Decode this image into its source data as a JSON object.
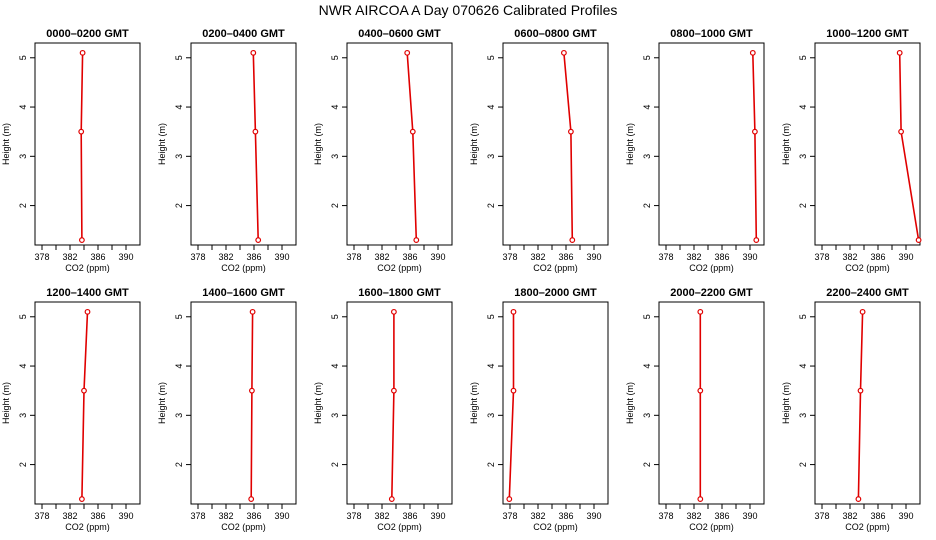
{
  "figure": {
    "title": "NWR AIRCOA A  Day 070626  Calibrated Profiles"
  },
  "chart_data": [
    {
      "type": "line",
      "title": "0000–0200 GMT",
      "xlabel": "CO2 (ppm)",
      "ylabel": "Height (m)",
      "xlim": [
        377,
        392
      ],
      "ylim": [
        1.2,
        5.3
      ],
      "xticks": [
        378,
        382,
        386,
        390
      ],
      "yticks": [
        2,
        3,
        4,
        5
      ],
      "series": [
        {
          "x": [
            383.8,
            383.6,
            383.7
          ],
          "y": [
            5.1,
            3.5,
            1.3
          ]
        }
      ]
    },
    {
      "type": "line",
      "title": "0200–0400 GMT",
      "xlabel": "CO2 (ppm)",
      "ylabel": "Height (m)",
      "xlim": [
        377,
        392
      ],
      "ylim": [
        1.2,
        5.3
      ],
      "xticks": [
        378,
        382,
        386,
        390
      ],
      "yticks": [
        2,
        3,
        4,
        5
      ],
      "series": [
        {
          "x": [
            385.9,
            386.2,
            386.6
          ],
          "y": [
            5.1,
            3.5,
            1.3
          ]
        }
      ]
    },
    {
      "type": "line",
      "title": "0400–0600 GMT",
      "xlabel": "CO2 (ppm)",
      "ylabel": "Height (m)",
      "xlim": [
        377,
        392
      ],
      "ylim": [
        1.2,
        5.3
      ],
      "xticks": [
        378,
        382,
        386,
        390
      ],
      "yticks": [
        2,
        3,
        4,
        5
      ],
      "series": [
        {
          "x": [
            385.6,
            386.4,
            386.9
          ],
          "y": [
            5.1,
            3.5,
            1.3
          ]
        }
      ]
    },
    {
      "type": "line",
      "title": "0600–0800 GMT",
      "xlabel": "CO2 (ppm)",
      "ylabel": "Height (m)",
      "xlim": [
        377,
        392
      ],
      "ylim": [
        1.2,
        5.3
      ],
      "xticks": [
        378,
        382,
        386,
        390
      ],
      "yticks": [
        2,
        3,
        4,
        5
      ],
      "series": [
        {
          "x": [
            385.7,
            386.7,
            386.9
          ],
          "y": [
            5.1,
            3.5,
            1.3
          ]
        }
      ]
    },
    {
      "type": "line",
      "title": "0800–1000 GMT",
      "xlabel": "CO2 (ppm)",
      "ylabel": "Height (m)",
      "xlim": [
        377,
        392
      ],
      "ylim": [
        1.2,
        5.3
      ],
      "xticks": [
        378,
        382,
        386,
        390
      ],
      "yticks": [
        2,
        3,
        4,
        5
      ],
      "series": [
        {
          "x": [
            390.4,
            390.7,
            390.9
          ],
          "y": [
            5.1,
            3.5,
            1.3
          ]
        }
      ]
    },
    {
      "type": "line",
      "title": "1000–1200 GMT",
      "xlabel": "CO2 (ppm)",
      "ylabel": "Height (m)",
      "xlim": [
        377,
        392
      ],
      "ylim": [
        1.2,
        5.3
      ],
      "xticks": [
        378,
        382,
        386,
        390
      ],
      "yticks": [
        2,
        3,
        4,
        5
      ],
      "series": [
        {
          "x": [
            389.1,
            389.3,
            391.8
          ],
          "y": [
            5.1,
            3.5,
            1.3
          ]
        }
      ]
    },
    {
      "type": "line",
      "title": "1200–1400 GMT",
      "xlabel": "CO2 (ppm)",
      "ylabel": "Height (m)",
      "xlim": [
        377,
        392
      ],
      "ylim": [
        1.2,
        5.3
      ],
      "xticks": [
        378,
        382,
        386,
        390
      ],
      "yticks": [
        2,
        3,
        4,
        5
      ],
      "series": [
        {
          "x": [
            384.5,
            384.0,
            383.7
          ],
          "y": [
            5.1,
            3.5,
            1.3
          ]
        }
      ]
    },
    {
      "type": "line",
      "title": "1400–1600 GMT",
      "xlabel": "CO2 (ppm)",
      "ylabel": "Height (m)",
      "xlim": [
        377,
        392
      ],
      "ylim": [
        1.2,
        5.3
      ],
      "xticks": [
        378,
        382,
        386,
        390
      ],
      "yticks": [
        2,
        3,
        4,
        5
      ],
      "series": [
        {
          "x": [
            385.8,
            385.7,
            385.6
          ],
          "y": [
            5.1,
            3.5,
            1.3
          ]
        }
      ]
    },
    {
      "type": "line",
      "title": "1600–1800 GMT",
      "xlabel": "CO2 (ppm)",
      "ylabel": "Height (m)",
      "xlim": [
        377,
        392
      ],
      "ylim": [
        1.2,
        5.3
      ],
      "xticks": [
        378,
        382,
        386,
        390
      ],
      "yticks": [
        2,
        3,
        4,
        5
      ],
      "series": [
        {
          "x": [
            383.7,
            383.7,
            383.4
          ],
          "y": [
            5.1,
            3.5,
            1.3
          ]
        }
      ]
    },
    {
      "type": "line",
      "title": "1800–2000 GMT",
      "xlabel": "CO2 (ppm)",
      "ylabel": "Height (m)",
      "xlim": [
        377,
        392
      ],
      "ylim": [
        1.2,
        5.3
      ],
      "xticks": [
        378,
        382,
        386,
        390
      ],
      "yticks": [
        2,
        3,
        4,
        5
      ],
      "series": [
        {
          "x": [
            378.5,
            378.5,
            377.9
          ],
          "y": [
            5.1,
            3.5,
            1.3
          ]
        }
      ]
    },
    {
      "type": "line",
      "title": "2000–2200 GMT",
      "xlabel": "CO2 (ppm)",
      "ylabel": "Height (m)",
      "xlim": [
        377,
        392
      ],
      "ylim": [
        1.2,
        5.3
      ],
      "xticks": [
        378,
        382,
        386,
        390
      ],
      "yticks": [
        2,
        3,
        4,
        5
      ],
      "series": [
        {
          "x": [
            382.9,
            382.9,
            382.9
          ],
          "y": [
            5.1,
            3.5,
            1.3
          ]
        }
      ]
    },
    {
      "type": "line",
      "title": "2200–2400 GMT",
      "xlabel": "CO2 (ppm)",
      "ylabel": "Height (m)",
      "xlim": [
        377,
        392
      ],
      "ylim": [
        1.2,
        5.3
      ],
      "xticks": [
        378,
        382,
        386,
        390
      ],
      "yticks": [
        2,
        3,
        4,
        5
      ],
      "series": [
        {
          "x": [
            383.8,
            383.5,
            383.2
          ],
          "y": [
            5.1,
            3.5,
            1.3
          ]
        }
      ]
    }
  ]
}
